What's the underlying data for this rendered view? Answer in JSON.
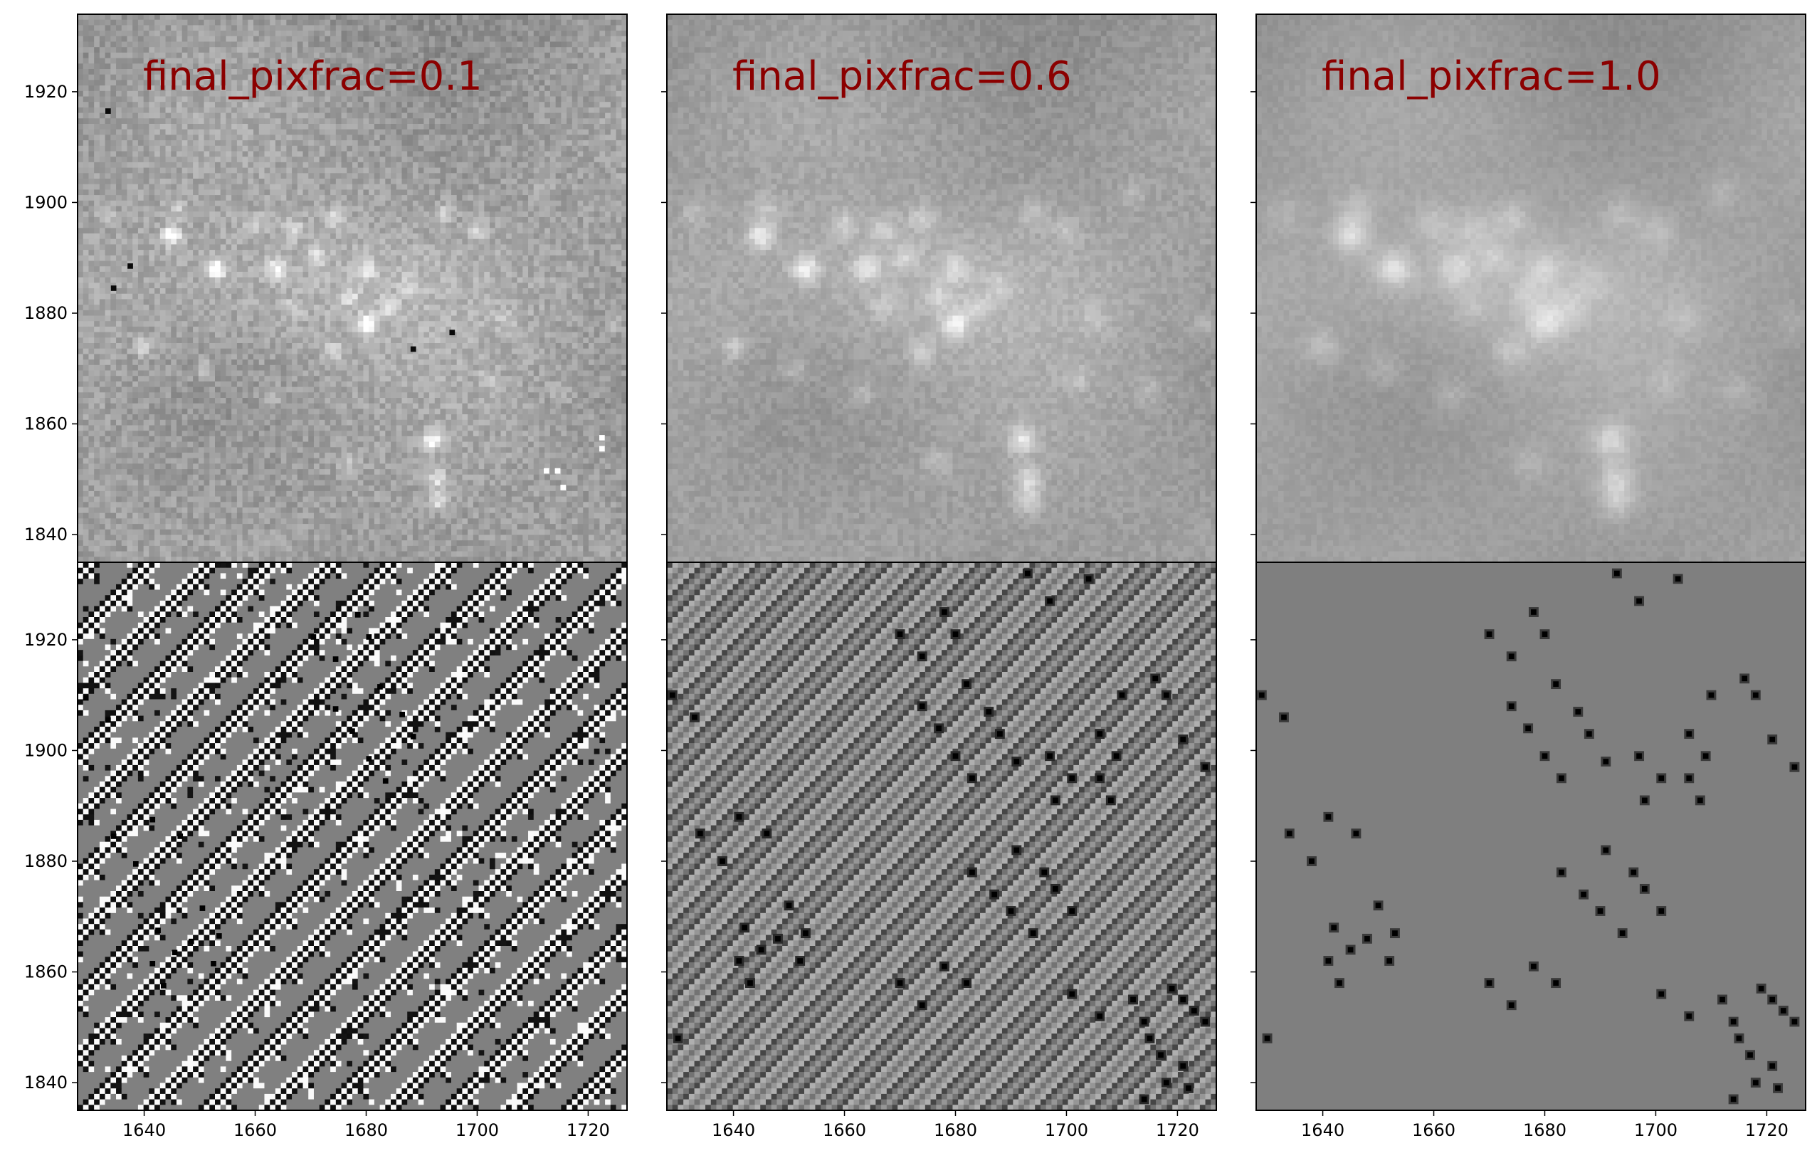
{
  "chart_data": {
    "type": "heatmap",
    "layout": "2 rows x 3 columns, shared axes",
    "colormap": "gray",
    "grid": false,
    "xlim": [
      1628,
      1727
    ],
    "ylim": [
      1835,
      1934
    ],
    "x_ticks": [
      1640,
      1660,
      1680,
      1700,
      1720
    ],
    "y_ticks": [
      1840,
      1860,
      1880,
      1900,
      1920
    ],
    "title_color": "#8b0000",
    "columns": [
      {
        "title": "final_pixfrac=0.1"
      },
      {
        "title": "final_pixfrac=0.6"
      },
      {
        "title": "final_pixfrac=1.0"
      }
    ],
    "rows": [
      {
        "content": "drizzled science image (star field)"
      },
      {
        "content": "weight / residual map"
      }
    ],
    "sources": [
      {
        "x": 1645,
        "y": 1894,
        "flux": 1.0
      },
      {
        "x": 1653,
        "y": 1888,
        "flux": 1.0
      },
      {
        "x": 1664,
        "y": 1888,
        "flux": 0.8
      },
      {
        "x": 1660,
        "y": 1896,
        "flux": 0.5
      },
      {
        "x": 1667,
        "y": 1895,
        "flux": 0.5
      },
      {
        "x": 1671,
        "y": 1890,
        "flux": 0.55
      },
      {
        "x": 1674,
        "y": 1897,
        "flux": 0.5
      },
      {
        "x": 1680,
        "y": 1888,
        "flux": 0.6
      },
      {
        "x": 1677,
        "y": 1883,
        "flux": 0.45
      },
      {
        "x": 1680,
        "y": 1878,
        "flux": 0.9
      },
      {
        "x": 1684,
        "y": 1881,
        "flux": 0.45
      },
      {
        "x": 1674,
        "y": 1873,
        "flux": 0.5
      },
      {
        "x": 1663,
        "y": 1865,
        "flux": 0.4
      },
      {
        "x": 1640,
        "y": 1874,
        "flux": 0.5
      },
      {
        "x": 1651,
        "y": 1870,
        "flux": 0.35
      },
      {
        "x": 1646,
        "y": 1899,
        "flux": 0.4
      },
      {
        "x": 1692,
        "y": 1857,
        "flux": 0.9
      },
      {
        "x": 1693,
        "y": 1850,
        "flux": 0.7
      },
      {
        "x": 1693,
        "y": 1846,
        "flux": 0.65
      },
      {
        "x": 1677,
        "y": 1853,
        "flux": 0.35
      },
      {
        "x": 1694,
        "y": 1898,
        "flux": 0.4
      },
      {
        "x": 1700,
        "y": 1895,
        "flux": 0.4
      },
      {
        "x": 1712,
        "y": 1902,
        "flux": 0.3
      },
      {
        "x": 1705,
        "y": 1879,
        "flux": 0.3
      },
      {
        "x": 1715,
        "y": 1866,
        "flux": 0.3
      },
      {
        "x": 1702,
        "y": 1868,
        "flux": 0.3
      },
      {
        "x": 1725,
        "y": 1878,
        "flux": 0.3
      },
      {
        "x": 1633,
        "y": 1898,
        "flux": 0.3
      },
      {
        "x": 1688,
        "y": 1885,
        "flux": 0.35
      },
      {
        "x": 1667,
        "y": 1881,
        "flux": 0.35
      }
    ],
    "weight_blobs": [
      {
        "x": 1629,
        "y": 1910
      },
      {
        "x": 1633,
        "y": 1906
      },
      {
        "x": 1641,
        "y": 1888
      },
      {
        "x": 1634,
        "y": 1885
      },
      {
        "x": 1638,
        "y": 1880
      },
      {
        "x": 1646,
        "y": 1885
      },
      {
        "x": 1642,
        "y": 1868
      },
      {
        "x": 1641,
        "y": 1862
      },
      {
        "x": 1645,
        "y": 1864
      },
      {
        "x": 1643,
        "y": 1858
      },
      {
        "x": 1648,
        "y": 1866
      },
      {
        "x": 1650,
        "y": 1872
      },
      {
        "x": 1652,
        "y": 1862
      },
      {
        "x": 1653,
        "y": 1867
      },
      {
        "x": 1670,
        "y": 1921
      },
      {
        "x": 1674,
        "y": 1917
      },
      {
        "x": 1678,
        "y": 1925
      },
      {
        "x": 1680,
        "y": 1921
      },
      {
        "x": 1682,
        "y": 1912
      },
      {
        "x": 1674,
        "y": 1908
      },
      {
        "x": 1677,
        "y": 1904
      },
      {
        "x": 1680,
        "y": 1899
      },
      {
        "x": 1683,
        "y": 1895
      },
      {
        "x": 1686,
        "y": 1907
      },
      {
        "x": 1688,
        "y": 1903
      },
      {
        "x": 1691,
        "y": 1898
      },
      {
        "x": 1697,
        "y": 1899
      },
      {
        "x": 1698,
        "y": 1891
      },
      {
        "x": 1701,
        "y": 1895
      },
      {
        "x": 1693,
        "y": 1932
      },
      {
        "x": 1697,
        "y": 1927
      },
      {
        "x": 1704,
        "y": 1931
      },
      {
        "x": 1706,
        "y": 1895
      },
      {
        "x": 1708,
        "y": 1891
      },
      {
        "x": 1709,
        "y": 1899
      },
      {
        "x": 1706,
        "y": 1903
      },
      {
        "x": 1710,
        "y": 1910
      },
      {
        "x": 1716,
        "y": 1913
      },
      {
        "x": 1718,
        "y": 1910
      },
      {
        "x": 1721,
        "y": 1902
      },
      {
        "x": 1725,
        "y": 1897
      },
      {
        "x": 1683,
        "y": 1878
      },
      {
        "x": 1687,
        "y": 1874
      },
      {
        "x": 1691,
        "y": 1882
      },
      {
        "x": 1690,
        "y": 1871
      },
      {
        "x": 1694,
        "y": 1867
      },
      {
        "x": 1696,
        "y": 1878
      },
      {
        "x": 1698,
        "y": 1875
      },
      {
        "x": 1701,
        "y": 1871
      },
      {
        "x": 1670,
        "y": 1858
      },
      {
        "x": 1674,
        "y": 1854
      },
      {
        "x": 1678,
        "y": 1861
      },
      {
        "x": 1682,
        "y": 1858
      },
      {
        "x": 1701,
        "y": 1856
      },
      {
        "x": 1706,
        "y": 1852
      },
      {
        "x": 1712,
        "y": 1855
      },
      {
        "x": 1714,
        "y": 1851
      },
      {
        "x": 1715,
        "y": 1848
      },
      {
        "x": 1717,
        "y": 1845
      },
      {
        "x": 1719,
        "y": 1857
      },
      {
        "x": 1721,
        "y": 1855
      },
      {
        "x": 1723,
        "y": 1853
      },
      {
        "x": 1725,
        "y": 1851
      },
      {
        "x": 1718,
        "y": 1840
      },
      {
        "x": 1721,
        "y": 1843
      },
      {
        "x": 1722,
        "y": 1839
      },
      {
        "x": 1714,
        "y": 1837
      },
      {
        "x": 1630,
        "y": 1848
      }
    ]
  }
}
